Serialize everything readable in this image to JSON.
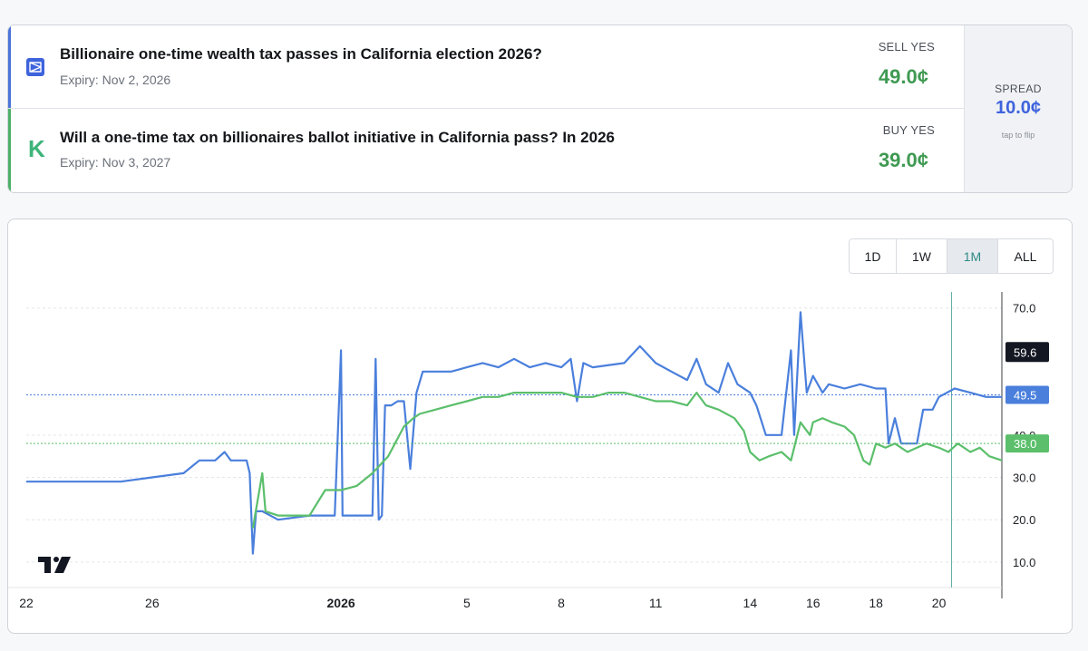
{
  "markets": [
    {
      "title": "Billionaire one-time wealth tax passes in California election 2026?",
      "expiry": "Expiry: Nov 2, 2026",
      "side_label": "SELL YES",
      "price": "49.0¢",
      "logo": "polymarket-logo",
      "color": "#4a74d9"
    },
    {
      "title": "Will a one-time tax on billionaires ballot initiative in California pass? In 2026",
      "expiry": "Expiry: Nov 3, 2027",
      "side_label": "BUY YES",
      "price": "39.0¢",
      "logo": "kalshi-logo",
      "logo_text": "K",
      "color": "#4fb06a"
    }
  ],
  "spread": {
    "label": "SPREAD",
    "value": "10.0¢",
    "hint": "tap to flip"
  },
  "range_tabs": [
    {
      "label": "1D",
      "active": false
    },
    {
      "label": "1W",
      "active": false
    },
    {
      "label": "1M",
      "active": true
    },
    {
      "label": "ALL",
      "active": false
    }
  ],
  "chart_data": {
    "type": "line",
    "x_ticks": [
      {
        "label": "22",
        "t": 0,
        "bold": false
      },
      {
        "label": "26",
        "t": 4,
        "bold": false
      },
      {
        "label": "2026",
        "t": 10,
        "bold": true
      },
      {
        "label": "5",
        "t": 14,
        "bold": false
      },
      {
        "label": "8",
        "t": 17,
        "bold": false
      },
      {
        "label": "11",
        "t": 20,
        "bold": false
      },
      {
        "label": "14",
        "t": 23,
        "bold": false
      },
      {
        "label": "16",
        "t": 25,
        "bold": false
      },
      {
        "label": "18",
        "t": 27,
        "bold": false
      },
      {
        "label": "20",
        "t": 29,
        "bold": false
      }
    ],
    "xlim": [
      0,
      31
    ],
    "ylim": [
      4.2,
      73.8
    ],
    "y_ticks": [
      10.0,
      20.0,
      30.0,
      40.0,
      70.0
    ],
    "y_tick_labels": [
      "10.0",
      "20.0",
      "30.0",
      "40.0",
      "70.0"
    ],
    "crosshair_x": 29.4,
    "crosshair_label": "59.6",
    "crosshair_value": 59.6,
    "series": [
      {
        "color": "#4a7fdc",
        "last_value": 49.5,
        "last_label": "49.5",
        "points": [
          [
            -0.2,
            29
          ],
          [
            3,
            29
          ],
          [
            4,
            30
          ],
          [
            5,
            31
          ],
          [
            5.5,
            34
          ],
          [
            6,
            34
          ],
          [
            6.3,
            36
          ],
          [
            6.5,
            34
          ],
          [
            7,
            34
          ],
          [
            7.1,
            31
          ],
          [
            7.2,
            12
          ],
          [
            7.3,
            22
          ],
          [
            7.5,
            22
          ],
          [
            8,
            20
          ],
          [
            9,
            21
          ],
          [
            9.2,
            21
          ],
          [
            9.5,
            21
          ],
          [
            9.8,
            21
          ],
          [
            10,
            60
          ],
          [
            10.05,
            21
          ],
          [
            10.5,
            21
          ],
          [
            11,
            21
          ],
          [
            11.1,
            58
          ],
          [
            11.2,
            20
          ],
          [
            11.3,
            21
          ],
          [
            11.4,
            47
          ],
          [
            11.6,
            47
          ],
          [
            11.8,
            48
          ],
          [
            12,
            48
          ],
          [
            12.2,
            32
          ],
          [
            12.4,
            50
          ],
          [
            12.6,
            55
          ],
          [
            13,
            55
          ],
          [
            13.5,
            55
          ],
          [
            14,
            56
          ],
          [
            14.5,
            57
          ],
          [
            15,
            56
          ],
          [
            15.5,
            58
          ],
          [
            16,
            56
          ],
          [
            16.5,
            57
          ],
          [
            17,
            56
          ],
          [
            17.3,
            58
          ],
          [
            17.5,
            48
          ],
          [
            17.7,
            57
          ],
          [
            18,
            56
          ],
          [
            19,
            57
          ],
          [
            19.5,
            61
          ],
          [
            20,
            57
          ],
          [
            20.5,
            55
          ],
          [
            21,
            53
          ],
          [
            21.3,
            58
          ],
          [
            21.6,
            52
          ],
          [
            22,
            50
          ],
          [
            22.3,
            57
          ],
          [
            22.6,
            52
          ],
          [
            23,
            50
          ],
          [
            23.2,
            47
          ],
          [
            23.5,
            40
          ],
          [
            24,
            40
          ],
          [
            24.3,
            60
          ],
          [
            24.4,
            40
          ],
          [
            24.6,
            69
          ],
          [
            24.8,
            50
          ],
          [
            25,
            54
          ],
          [
            25.3,
            50
          ],
          [
            25.5,
            52
          ],
          [
            26,
            51
          ],
          [
            26.5,
            52
          ],
          [
            27,
            51
          ],
          [
            27.3,
            51
          ],
          [
            27.4,
            38
          ],
          [
            27.6,
            44
          ],
          [
            27.8,
            38
          ],
          [
            28,
            38
          ],
          [
            28.3,
            38
          ],
          [
            28.5,
            46
          ],
          [
            28.8,
            46
          ],
          [
            29,
            49
          ],
          [
            29.5,
            51
          ],
          [
            30,
            50
          ],
          [
            30.5,
            49
          ],
          [
            31,
            49
          ],
          [
            31.5,
            50
          ],
          [
            31.8,
            50
          ],
          [
            32,
            49.5
          ]
        ]
      },
      {
        "color": "#5bbf6b",
        "last_value": 38.0,
        "last_label": "38.0",
        "points": [
          [
            7.2,
            18
          ],
          [
            7.5,
            31
          ],
          [
            7.6,
            22
          ],
          [
            8,
            21
          ],
          [
            9,
            21
          ],
          [
            9.5,
            27
          ],
          [
            10,
            27
          ],
          [
            10.5,
            28
          ],
          [
            11,
            31
          ],
          [
            11.5,
            35
          ],
          [
            12,
            42
          ],
          [
            12.3,
            44
          ],
          [
            12.5,
            45
          ],
          [
            13,
            46
          ],
          [
            13.5,
            47
          ],
          [
            14,
            48
          ],
          [
            14.5,
            49
          ],
          [
            15,
            49
          ],
          [
            15.5,
            50
          ],
          [
            16,
            50
          ],
          [
            16.5,
            50
          ],
          [
            17,
            50
          ],
          [
            17.5,
            49
          ],
          [
            18,
            49
          ],
          [
            18.5,
            50
          ],
          [
            19,
            50
          ],
          [
            19.5,
            49
          ],
          [
            20,
            48
          ],
          [
            20.5,
            48
          ],
          [
            21,
            47
          ],
          [
            21.3,
            50
          ],
          [
            21.6,
            47
          ],
          [
            22,
            46
          ],
          [
            22.5,
            44
          ],
          [
            22.8,
            41
          ],
          [
            23,
            36
          ],
          [
            23.3,
            34
          ],
          [
            23.6,
            35
          ],
          [
            24,
            36
          ],
          [
            24.3,
            34
          ],
          [
            24.6,
            43
          ],
          [
            24.9,
            40
          ],
          [
            25,
            43
          ],
          [
            25.3,
            44
          ],
          [
            25.6,
            43
          ],
          [
            26,
            42
          ],
          [
            26.3,
            40
          ],
          [
            26.6,
            34
          ],
          [
            26.8,
            33
          ],
          [
            27,
            38
          ],
          [
            27.3,
            37
          ],
          [
            27.6,
            38
          ],
          [
            28,
            36
          ],
          [
            28.3,
            37
          ],
          [
            28.6,
            38
          ],
          [
            29,
            37
          ],
          [
            29.3,
            36
          ],
          [
            29.6,
            38
          ],
          [
            30,
            36
          ],
          [
            30.3,
            37
          ],
          [
            30.6,
            35
          ],
          [
            31,
            34
          ],
          [
            31.3,
            36
          ],
          [
            31.6,
            38
          ],
          [
            31.8,
            40
          ],
          [
            32,
            38
          ]
        ]
      }
    ]
  }
}
